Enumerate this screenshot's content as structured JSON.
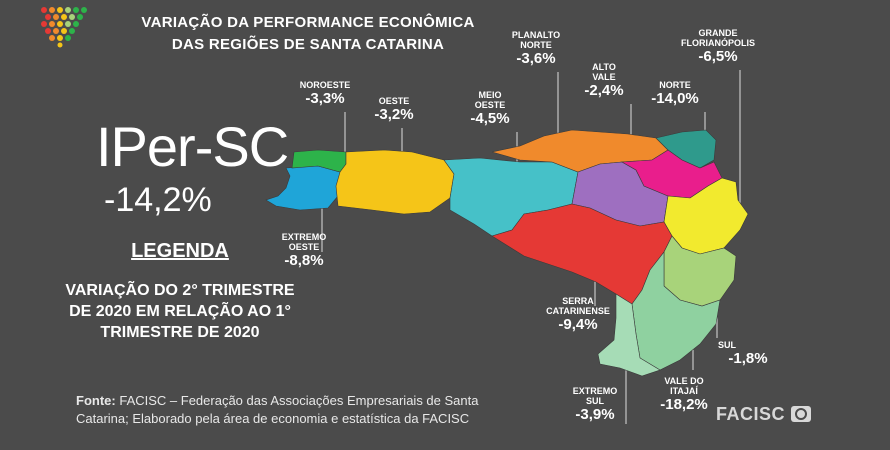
{
  "header": {
    "title_line1": "VARIAÇÃO DA PERFORMANCE ECONÔMICA",
    "title_line2": "DAS REGIÕES DE SANTA CATARINA"
  },
  "index": {
    "name": "IPer-SC",
    "value": "-14,2%"
  },
  "legend": {
    "title": "LEGENDA",
    "text": "VARIAÇÃO DO 2° TRIMESTRE DE 2020 EM RELAÇÃO AO 1° TRIMESTRE DE 2020"
  },
  "source": {
    "label": "Fonte:",
    "text": "FACISC – Federação das Associações Empresariais de Santa Catarina; Elaborado pela área de economia e estatística da FACISC"
  },
  "brand": {
    "logo_text": "FACISC"
  },
  "regions": [
    {
      "key": "noroeste",
      "name": "NOROESTE",
      "value": "-3,3%",
      "color": "#2db34a"
    },
    {
      "key": "oeste",
      "name": "OESTE",
      "value": "-3,2%",
      "color": "#f5c518"
    },
    {
      "key": "meio_oeste",
      "name": "MEIO\nOESTE",
      "value": "-4,5%",
      "color": "#46c1c8"
    },
    {
      "key": "planalto_norte",
      "name": "PLANALTO\nNORTE",
      "value": "-3,6%",
      "color": "#f08a2c"
    },
    {
      "key": "alto_vale",
      "name": "ALTO\nVALE",
      "value": "-2,4%",
      "color": "#9e6fc0"
    },
    {
      "key": "norte",
      "name": "NORTE",
      "value": "-14,0%",
      "color": "#2f9a8c"
    },
    {
      "key": "grande_florianopolis",
      "name": "GRANDE\nFLORIANÓPOLIS",
      "value": "-6,5%",
      "color": "#a8d37a"
    },
    {
      "key": "extremo_oeste",
      "name": "EXTREMO\nOESTE",
      "value": "-8,8%",
      "color": "#1fa5d8"
    },
    {
      "key": "serra_catarinense",
      "name": "SERRA\nCATARINENSE",
      "value": "-9,4%",
      "color": "#e53935"
    },
    {
      "key": "sul",
      "name": "SUL",
      "value": "-1,8%",
      "color": "#8fd1a0"
    },
    {
      "key": "vale_do_itajai",
      "name": "VALE DO\nITAJAÍ",
      "value": "-18,2%",
      "color": "#f2ea2e"
    },
    {
      "key": "extremo_sul",
      "name": "EXTREMO\nSUL",
      "value": "-3,9%",
      "color": "#a6dcb6"
    },
    {
      "key": "foz_itajai",
      "name": "",
      "value": "",
      "color": "#e91e8c"
    }
  ]
}
